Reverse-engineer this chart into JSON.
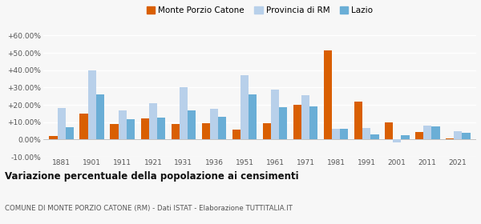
{
  "years": [
    1881,
    1901,
    1911,
    1921,
    1931,
    1936,
    1951,
    1961,
    1971,
    1981,
    1991,
    2001,
    2011,
    2021
  ],
  "monte_porzio": [
    2.0,
    15.0,
    9.0,
    12.0,
    9.0,
    9.5,
    5.5,
    9.5,
    20.0,
    51.5,
    22.0,
    10.0,
    4.5,
    0.5
  ],
  "provincia_rm": [
    18.0,
    40.0,
    17.0,
    21.0,
    30.0,
    17.5,
    37.0,
    29.0,
    25.5,
    6.0,
    6.5,
    -1.5,
    8.0,
    5.0
  ],
  "lazio": [
    7.0,
    26.0,
    11.5,
    12.5,
    17.0,
    13.0,
    26.0,
    18.5,
    19.0,
    6.0,
    3.0,
    2.5,
    7.5,
    4.0
  ],
  "color_monte": "#d95f02",
  "color_provincia": "#b8d0ea",
  "color_lazio": "#6aaed6",
  "ylim": [
    -10,
    65
  ],
  "yticks": [
    -10,
    0,
    10,
    20,
    30,
    40,
    50,
    60
  ],
  "ytick_labels": [
    "-10.00%",
    "0.00%",
    "+10.00%",
    "+20.00%",
    "+30.00%",
    "+40.00%",
    "+50.00%",
    "+60.00%"
  ],
  "title": "Variazione percentuale della popolazione ai censimenti",
  "subtitle": "COMUNE DI MONTE PORZIO CATONE (RM) - Dati ISTAT - Elaborazione TUTTITALIA.IT",
  "legend_labels": [
    "Monte Porzio Catone",
    "Provincia di RM",
    "Lazio"
  ],
  "background_color": "#f7f7f7",
  "bar_width": 0.27
}
